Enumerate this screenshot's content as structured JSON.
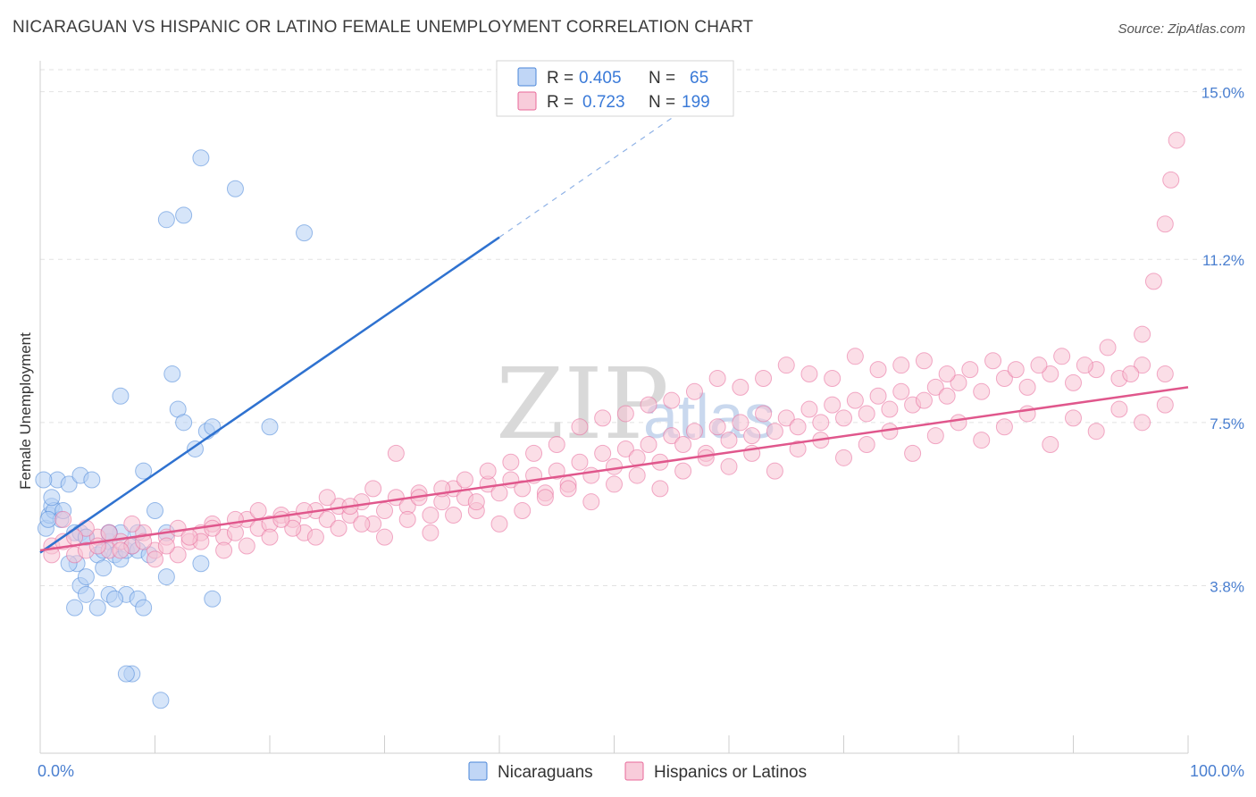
{
  "header": {
    "title": "NICARAGUAN VS HISPANIC OR LATINO FEMALE UNEMPLOYMENT CORRELATION CHART",
    "source": "Source: ZipAtlas.com"
  },
  "watermark": {
    "zip": "ZIP",
    "atlas": "atlas"
  },
  "legend": {
    "r_label": "R =",
    "n_label": "N =",
    "rows": [
      {
        "r": "0.405",
        "n": "65",
        "color": "#a9c7f3"
      },
      {
        "r": "0.723",
        "n": "199",
        "color": "#f7b8cb"
      }
    ]
  },
  "bottom_legend": [
    "Nicaraguans",
    "Hispanics or Latinos"
  ],
  "chart_data": {
    "type": "scatter",
    "title": "NICARAGUAN VS HISPANIC OR LATINO FEMALE UNEMPLOYMENT CORRELATION CHART",
    "xlabel": "",
    "ylabel": "Female Unemployment",
    "xlim": [
      0,
      100
    ],
    "ylim": [
      0,
      15.5
    ],
    "x_tick_labels": {
      "min": "0.0%",
      "max": "100.0%"
    },
    "y_ticks": [
      {
        "value": 3.8,
        "label": "3.8%"
      },
      {
        "value": 7.5,
        "label": "7.5%"
      },
      {
        "value": 11.2,
        "label": "11.2%"
      },
      {
        "value": 15.0,
        "label": "15.0%"
      }
    ],
    "grid": true,
    "series": [
      {
        "name": "Nicaraguans",
        "color": "#4a86d8",
        "fill": "#b5cff4",
        "r": 0.405,
        "n": 65,
        "trend": {
          "x0": 0,
          "y0": 4.55,
          "x1": 40,
          "y1": 11.7,
          "dash_to_x": 55,
          "dash_to_y": 14.4
        },
        "points": [
          [
            0.5,
            5.1
          ],
          [
            0.8,
            5.4
          ],
          [
            1.0,
            5.6
          ],
          [
            1.2,
            5.5
          ],
          [
            1.5,
            6.2
          ],
          [
            1.8,
            5.3
          ],
          [
            0.3,
            6.2
          ],
          [
            2.5,
            6.1
          ],
          [
            3.0,
            5.0
          ],
          [
            3.5,
            5.0
          ],
          [
            4.0,
            4.9
          ],
          [
            3.5,
            6.3
          ],
          [
            4.5,
            6.2
          ],
          [
            2.0,
            5.5
          ],
          [
            1.0,
            5.8
          ],
          [
            0.7,
            5.3
          ],
          [
            3.2,
            4.3
          ],
          [
            3.5,
            3.8
          ],
          [
            4.0,
            4.9
          ],
          [
            5.0,
            4.5
          ],
          [
            5.5,
            4.2
          ],
          [
            6.0,
            4.8
          ],
          [
            6.5,
            4.5
          ],
          [
            7.0,
            4.4
          ],
          [
            7.5,
            4.6
          ],
          [
            8.0,
            4.7
          ],
          [
            8.5,
            5.0
          ],
          [
            7.0,
            5.0
          ],
          [
            6.0,
            5.0
          ],
          [
            9.0,
            6.4
          ],
          [
            10.0,
            5.5
          ],
          [
            11.0,
            5.0
          ],
          [
            11.5,
            8.6
          ],
          [
            12.0,
            7.8
          ],
          [
            12.5,
            7.5
          ],
          [
            13.5,
            6.9
          ],
          [
            14.0,
            4.3
          ],
          [
            14.5,
            7.3
          ],
          [
            15.0,
            3.5
          ],
          [
            7.5,
            3.6
          ],
          [
            8.5,
            3.5
          ],
          [
            9.0,
            3.3
          ],
          [
            6.0,
            3.6
          ],
          [
            6.5,
            3.5
          ],
          [
            5.0,
            3.3
          ],
          [
            4.0,
            3.6
          ],
          [
            3.0,
            3.3
          ],
          [
            8.0,
            1.8
          ],
          [
            7.5,
            1.8
          ],
          [
            10.5,
            1.2
          ],
          [
            7.0,
            8.1
          ],
          [
            11.0,
            12.1
          ],
          [
            12.5,
            12.2
          ],
          [
            14.0,
            13.5
          ],
          [
            17.0,
            12.8
          ],
          [
            23.0,
            11.8
          ],
          [
            15.0,
            7.4
          ],
          [
            20.0,
            7.4
          ],
          [
            8.5,
            4.6
          ],
          [
            6.0,
            5.0
          ],
          [
            5.5,
            4.6
          ],
          [
            2.5,
            4.3
          ],
          [
            4.0,
            4.0
          ],
          [
            9.5,
            4.5
          ],
          [
            11.0,
            4.0
          ]
        ]
      },
      {
        "name": "Hispanics or Latinos",
        "color": "#e8699a",
        "fill": "#f7c3d3",
        "r": 0.723,
        "n": 199,
        "trend": {
          "x0": 0,
          "y0": 4.6,
          "x1": 100,
          "y1": 8.3
        },
        "points": [
          [
            1,
            4.7
          ],
          [
            2,
            4.8
          ],
          [
            3,
            4.5
          ],
          [
            4,
            4.6
          ],
          [
            5,
            4.9
          ],
          [
            6,
            4.6
          ],
          [
            7,
            4.8
          ],
          [
            8,
            4.7
          ],
          [
            9,
            5.0
          ],
          [
            10,
            4.6
          ],
          [
            11,
            4.9
          ],
          [
            12,
            5.1
          ],
          [
            13,
            4.8
          ],
          [
            14,
            5.0
          ],
          [
            15,
            5.2
          ],
          [
            16,
            4.9
          ],
          [
            17,
            5.0
          ],
          [
            18,
            5.3
          ],
          [
            19,
            5.1
          ],
          [
            20,
            5.2
          ],
          [
            21,
            5.4
          ],
          [
            22,
            5.3
          ],
          [
            23,
            5.0
          ],
          [
            24,
            5.5
          ],
          [
            25,
            5.3
          ],
          [
            26,
            5.6
          ],
          [
            27,
            5.4
          ],
          [
            28,
            5.7
          ],
          [
            29,
            5.2
          ],
          [
            30,
            5.5
          ],
          [
            31,
            5.8
          ],
          [
            32,
            5.6
          ],
          [
            33,
            5.9
          ],
          [
            34,
            5.4
          ],
          [
            35,
            5.7
          ],
          [
            36,
            6.0
          ],
          [
            37,
            5.8
          ],
          [
            38,
            5.5
          ],
          [
            39,
            6.1
          ],
          [
            40,
            5.9
          ],
          [
            41,
            6.2
          ],
          [
            42,
            6.0
          ],
          [
            43,
            6.3
          ],
          [
            44,
            5.9
          ],
          [
            45,
            6.4
          ],
          [
            46,
            6.1
          ],
          [
            47,
            6.6
          ],
          [
            48,
            6.3
          ],
          [
            49,
            6.8
          ],
          [
            50,
            6.5
          ],
          [
            51,
            6.9
          ],
          [
            52,
            6.7
          ],
          [
            53,
            7.0
          ],
          [
            54,
            6.6
          ],
          [
            55,
            7.2
          ],
          [
            56,
            7.0
          ],
          [
            57,
            7.3
          ],
          [
            58,
            6.8
          ],
          [
            59,
            7.4
          ],
          [
            60,
            7.1
          ],
          [
            61,
            7.5
          ],
          [
            62,
            7.2
          ],
          [
            63,
            7.7
          ],
          [
            64,
            7.3
          ],
          [
            65,
            7.6
          ],
          [
            66,
            7.4
          ],
          [
            67,
            7.8
          ],
          [
            68,
            7.5
          ],
          [
            69,
            7.9
          ],
          [
            70,
            7.6
          ],
          [
            71,
            8.0
          ],
          [
            72,
            7.7
          ],
          [
            73,
            8.1
          ],
          [
            74,
            7.8
          ],
          [
            75,
            8.2
          ],
          [
            76,
            7.9
          ],
          [
            77,
            8.0
          ],
          [
            78,
            8.3
          ],
          [
            79,
            8.1
          ],
          [
            80,
            8.4
          ],
          [
            82,
            8.2
          ],
          [
            84,
            8.5
          ],
          [
            86,
            8.3
          ],
          [
            88,
            8.6
          ],
          [
            90,
            8.4
          ],
          [
            92,
            8.7
          ],
          [
            94,
            8.5
          ],
          [
            96,
            8.8
          ],
          [
            98,
            8.6
          ],
          [
            2,
            5.3
          ],
          [
            4,
            5.1
          ],
          [
            6,
            5.0
          ],
          [
            8,
            5.2
          ],
          [
            10,
            4.4
          ],
          [
            12,
            4.5
          ],
          [
            14,
            4.8
          ],
          [
            16,
            4.6
          ],
          [
            18,
            4.7
          ],
          [
            20,
            4.9
          ],
          [
            22,
            5.1
          ],
          [
            24,
            4.9
          ],
          [
            26,
            5.1
          ],
          [
            28,
            5.2
          ],
          [
            30,
            4.9
          ],
          [
            32,
            5.3
          ],
          [
            34,
            5.0
          ],
          [
            36,
            5.4
          ],
          [
            38,
            5.7
          ],
          [
            40,
            5.2
          ],
          [
            42,
            5.5
          ],
          [
            44,
            5.8
          ],
          [
            46,
            6.0
          ],
          [
            48,
            5.7
          ],
          [
            50,
            6.1
          ],
          [
            52,
            6.3
          ],
          [
            54,
            6.0
          ],
          [
            56,
            6.4
          ],
          [
            58,
            6.7
          ],
          [
            60,
            6.5
          ],
          [
            62,
            6.8
          ],
          [
            64,
            6.4
          ],
          [
            66,
            6.9
          ],
          [
            68,
            7.1
          ],
          [
            70,
            6.7
          ],
          [
            72,
            7.0
          ],
          [
            74,
            7.3
          ],
          [
            76,
            6.8
          ],
          [
            78,
            7.2
          ],
          [
            80,
            7.5
          ],
          [
            82,
            7.1
          ],
          [
            84,
            7.4
          ],
          [
            86,
            7.7
          ],
          [
            88,
            7.0
          ],
          [
            90,
            7.6
          ],
          [
            92,
            7.3
          ],
          [
            94,
            7.8
          ],
          [
            96,
            7.5
          ],
          [
            98,
            7.9
          ],
          [
            99,
            13.9
          ],
          [
            98.5,
            13.0
          ],
          [
            98,
            12.0
          ],
          [
            97,
            10.7
          ],
          [
            96,
            9.5
          ],
          [
            95,
            8.6
          ],
          [
            93,
            9.2
          ],
          [
            91,
            8.8
          ],
          [
            89,
            9.0
          ],
          [
            87,
            8.8
          ],
          [
            85,
            8.7
          ],
          [
            83,
            8.9
          ],
          [
            81,
            8.7
          ],
          [
            79,
            8.6
          ],
          [
            77,
            8.9
          ],
          [
            75,
            8.8
          ],
          [
            73,
            8.7
          ],
          [
            71,
            9.0
          ],
          [
            69,
            8.5
          ],
          [
            67,
            8.6
          ],
          [
            65,
            8.8
          ],
          [
            63,
            8.5
          ],
          [
            61,
            8.3
          ],
          [
            59,
            8.5
          ],
          [
            57,
            8.2
          ],
          [
            55,
            8.0
          ],
          [
            53,
            7.9
          ],
          [
            51,
            7.7
          ],
          [
            49,
            7.6
          ],
          [
            47,
            7.4
          ],
          [
            45,
            7.0
          ],
          [
            43,
            6.8
          ],
          [
            41,
            6.6
          ],
          [
            39,
            6.4
          ],
          [
            37,
            6.2
          ],
          [
            35,
            6.0
          ],
          [
            33,
            5.8
          ],
          [
            31,
            6.8
          ],
          [
            29,
            6.0
          ],
          [
            27,
            5.6
          ],
          [
            25,
            5.8
          ],
          [
            23,
            5.5
          ],
          [
            21,
            5.3
          ],
          [
            19,
            5.5
          ],
          [
            17,
            5.3
          ],
          [
            15,
            5.1
          ],
          [
            13,
            4.9
          ],
          [
            11,
            4.7
          ],
          [
            9,
            4.8
          ],
          [
            7,
            4.6
          ],
          [
            5,
            4.7
          ],
          [
            3,
            4.9
          ],
          [
            1,
            4.5
          ]
        ]
      }
    ]
  }
}
